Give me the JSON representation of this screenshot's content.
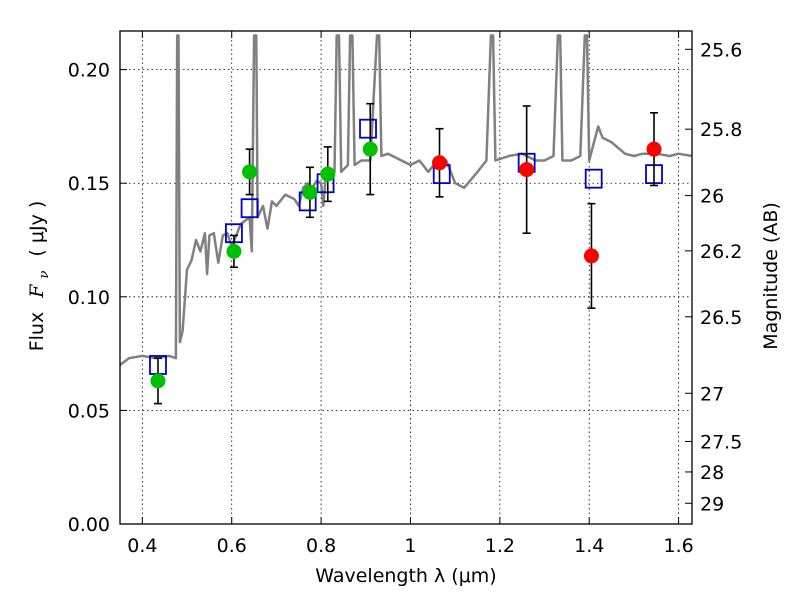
{
  "chart_data": {
    "type": "scatter",
    "xlabel": "Wavelength  λ (μm)",
    "ylabel_left_prefix": "Flux",
    "ylabel_left_symbol": "F",
    "ylabel_left_sub": "ν",
    "ylabel_left_suffix": "( μJy )",
    "ylabel_right": "Magnitude (AB)",
    "xlim": [
      0.35,
      1.63
    ],
    "ylim": [
      0.0,
      0.217
    ],
    "x_ticks": [
      0.4,
      0.6,
      0.8,
      1.0,
      1.2,
      1.4,
      1.6
    ],
    "x_tick_labels": [
      "0.4",
      "0.6",
      "0.8",
      "1",
      "1.2",
      "1.4",
      "1.6"
    ],
    "y_ticks": [
      0.0,
      0.05,
      0.1,
      0.15,
      0.2
    ],
    "y_tick_labels": [
      "0.00",
      "0.05",
      "0.10",
      "0.15",
      "0.20"
    ],
    "right_ticks": [
      {
        "mag": 25.6,
        "label": "25.6"
      },
      {
        "mag": 25.8,
        "label": "25.8"
      },
      {
        "mag": 26.0,
        "label": "26"
      },
      {
        "mag": 26.2,
        "label": "26.2"
      },
      {
        "mag": 26.5,
        "label": "26.5"
      },
      {
        "mag": 27.0,
        "label": "27"
      },
      {
        "mag": 27.5,
        "label": "27.5"
      },
      {
        "mag": 28.0,
        "label": "28"
      },
      {
        "mag": 29.0,
        "label": "29"
      }
    ],
    "grid": "dotted",
    "colors": {
      "model_spectrum": "#808080",
      "model_boxes": "#0000cc",
      "green_points": "#00c000",
      "red_points": "#ff0000",
      "error_bars": "#000000"
    },
    "series": [
      {
        "kind": "line",
        "points": [
          [
            0.35,
            0.07
          ],
          [
            0.37,
            0.073
          ],
          [
            0.4,
            0.074
          ],
          [
            0.43,
            0.073
          ],
          [
            0.46,
            0.074
          ],
          [
            0.475,
            0.073
          ],
          [
            0.478,
            0.215
          ],
          [
            0.481,
            0.215
          ],
          [
            0.484,
            0.08
          ],
          [
            0.49,
            0.085
          ],
          [
            0.5,
            0.112
          ],
          [
            0.51,
            0.116
          ],
          [
            0.52,
            0.125
          ],
          [
            0.53,
            0.12
          ],
          [
            0.54,
            0.128
          ],
          [
            0.545,
            0.11
          ],
          [
            0.55,
            0.127
          ],
          [
            0.56,
            0.128
          ],
          [
            0.57,
            0.115
          ],
          [
            0.58,
            0.127
          ],
          [
            0.59,
            0.128
          ],
          [
            0.6,
            0.122
          ],
          [
            0.62,
            0.132
          ],
          [
            0.64,
            0.135
          ],
          [
            0.645,
            0.12
          ],
          [
            0.65,
            0.215
          ],
          [
            0.655,
            0.215
          ],
          [
            0.658,
            0.135
          ],
          [
            0.67,
            0.14
          ],
          [
            0.68,
            0.13
          ],
          [
            0.69,
            0.142
          ],
          [
            0.7,
            0.14
          ],
          [
            0.72,
            0.145
          ],
          [
            0.74,
            0.143
          ],
          [
            0.75,
            0.14
          ],
          [
            0.76,
            0.148
          ],
          [
            0.77,
            0.15
          ],
          [
            0.78,
            0.148
          ],
          [
            0.79,
            0.151
          ],
          [
            0.8,
            0.15
          ],
          [
            0.805,
            0.14
          ],
          [
            0.81,
            0.152
          ],
          [
            0.82,
            0.155
          ],
          [
            0.83,
            0.155
          ],
          [
            0.835,
            0.215
          ],
          [
            0.84,
            0.215
          ],
          [
            0.845,
            0.155
          ],
          [
            0.86,
            0.158
          ],
          [
            0.865,
            0.215
          ],
          [
            0.87,
            0.215
          ],
          [
            0.875,
            0.158
          ],
          [
            0.89,
            0.16
          ],
          [
            0.91,
            0.16
          ],
          [
            0.925,
            0.215
          ],
          [
            0.93,
            0.215
          ],
          [
            0.935,
            0.162
          ],
          [
            0.95,
            0.163
          ],
          [
            0.98,
            0.16
          ],
          [
            1.0,
            0.158
          ],
          [
            1.02,
            0.16
          ],
          [
            1.04,
            0.155
          ],
          [
            1.06,
            0.16
          ],
          [
            1.08,
            0.16
          ],
          [
            1.1,
            0.15
          ],
          [
            1.12,
            0.148
          ],
          [
            1.15,
            0.155
          ],
          [
            1.17,
            0.16
          ],
          [
            1.18,
            0.215
          ],
          [
            1.185,
            0.215
          ],
          [
            1.19,
            0.16
          ],
          [
            1.22,
            0.162
          ],
          [
            1.25,
            0.163
          ],
          [
            1.28,
            0.16
          ],
          [
            1.3,
            0.16
          ],
          [
            1.32,
            0.162
          ],
          [
            1.33,
            0.215
          ],
          [
            1.335,
            0.215
          ],
          [
            1.34,
            0.16
          ],
          [
            1.36,
            0.16
          ],
          [
            1.38,
            0.162
          ],
          [
            1.39,
            0.215
          ],
          [
            1.395,
            0.215
          ],
          [
            1.4,
            0.16
          ],
          [
            1.42,
            0.175
          ],
          [
            1.43,
            0.17
          ],
          [
            1.45,
            0.168
          ],
          [
            1.48,
            0.163
          ],
          [
            1.5,
            0.162
          ],
          [
            1.52,
            0.163
          ],
          [
            1.55,
            0.163
          ],
          [
            1.58,
            0.162
          ],
          [
            1.6,
            0.163
          ],
          [
            1.63,
            0.162
          ]
        ]
      },
      {
        "kind": "model_boxes",
        "points": [
          [
            0.435,
            0.07
          ],
          [
            0.605,
            0.128
          ],
          [
            0.64,
            0.139
          ],
          [
            0.77,
            0.142
          ],
          [
            0.81,
            0.15
          ],
          [
            0.905,
            0.174
          ],
          [
            1.07,
            0.154
          ],
          [
            1.26,
            0.159
          ],
          [
            1.41,
            0.152
          ],
          [
            1.545,
            0.154
          ]
        ]
      },
      {
        "kind": "points",
        "color_key": "green_points",
        "points": [
          {
            "x": 0.435,
            "y": 0.063,
            "err": 0.01
          },
          {
            "x": 0.605,
            "y": 0.12,
            "err": 0.007
          },
          {
            "x": 0.64,
            "y": 0.155,
            "err": 0.01
          },
          {
            "x": 0.775,
            "y": 0.146,
            "err": 0.011
          },
          {
            "x": 0.815,
            "y": 0.154,
            "err": 0.012
          },
          {
            "x": 0.91,
            "y": 0.165,
            "err": 0.02
          }
        ]
      },
      {
        "kind": "points",
        "color_key": "red_points",
        "points": [
          {
            "x": 1.065,
            "y": 0.159,
            "err": 0.015
          },
          {
            "x": 1.26,
            "y": 0.156,
            "err": 0.028
          },
          {
            "x": 1.405,
            "y": 0.118,
            "err": 0.023
          },
          {
            "x": 1.545,
            "y": 0.165,
            "err": 0.016
          }
        ]
      }
    ]
  }
}
